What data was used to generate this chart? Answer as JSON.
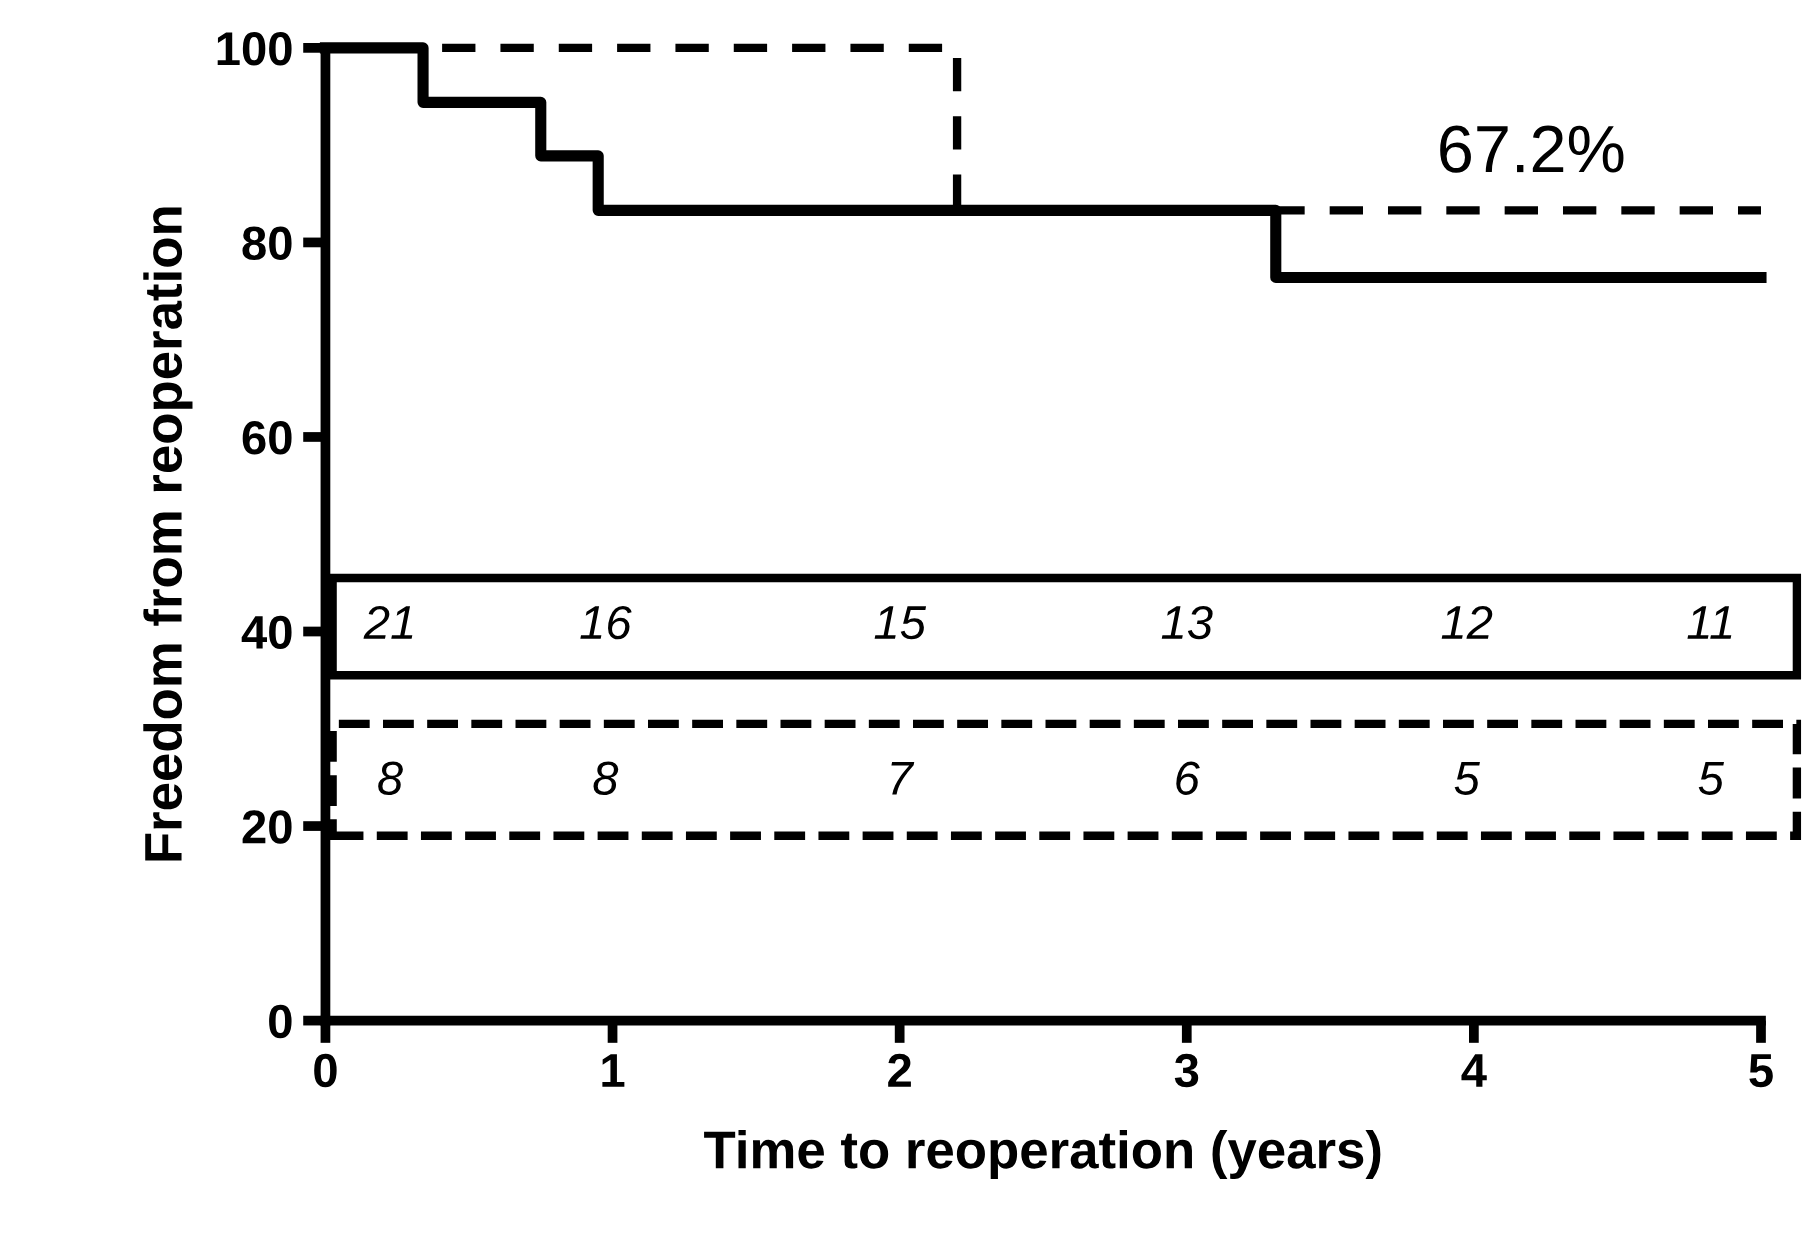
{
  "chart_data": {
    "type": "step",
    "xlabel": "Time to reoperation (years)",
    "ylabel": "Freedom from reoperation",
    "series": [
      {
        "color": "#000000",
        "line_style": "solid",
        "x": [
          0,
          0.34,
          0.75,
          0.95,
          3.31,
          5
        ],
        "values": [
          100,
          94.4,
          88.9,
          83.3,
          76.4,
          76.4
        ]
      },
      {
        "color": "#000000",
        "line_style": "dashed",
        "x": [
          0,
          2.2,
          5
        ],
        "values": [
          100,
          83.3,
          83.3
        ]
      }
    ],
    "xlim": [
      0,
      5
    ],
    "ylim": [
      0,
      100
    ],
    "xticks": [
      0,
      1,
      2,
      3,
      4,
      5
    ],
    "yticks": [
      0,
      20,
      40,
      60,
      80,
      100
    ],
    "grid": false,
    "legend": false,
    "annotations": [
      "67.2%",
      "21",
      "16",
      "15",
      "13",
      "12",
      "11",
      "8",
      "8",
      "7",
      "6",
      "5",
      "5"
    ]
  }
}
